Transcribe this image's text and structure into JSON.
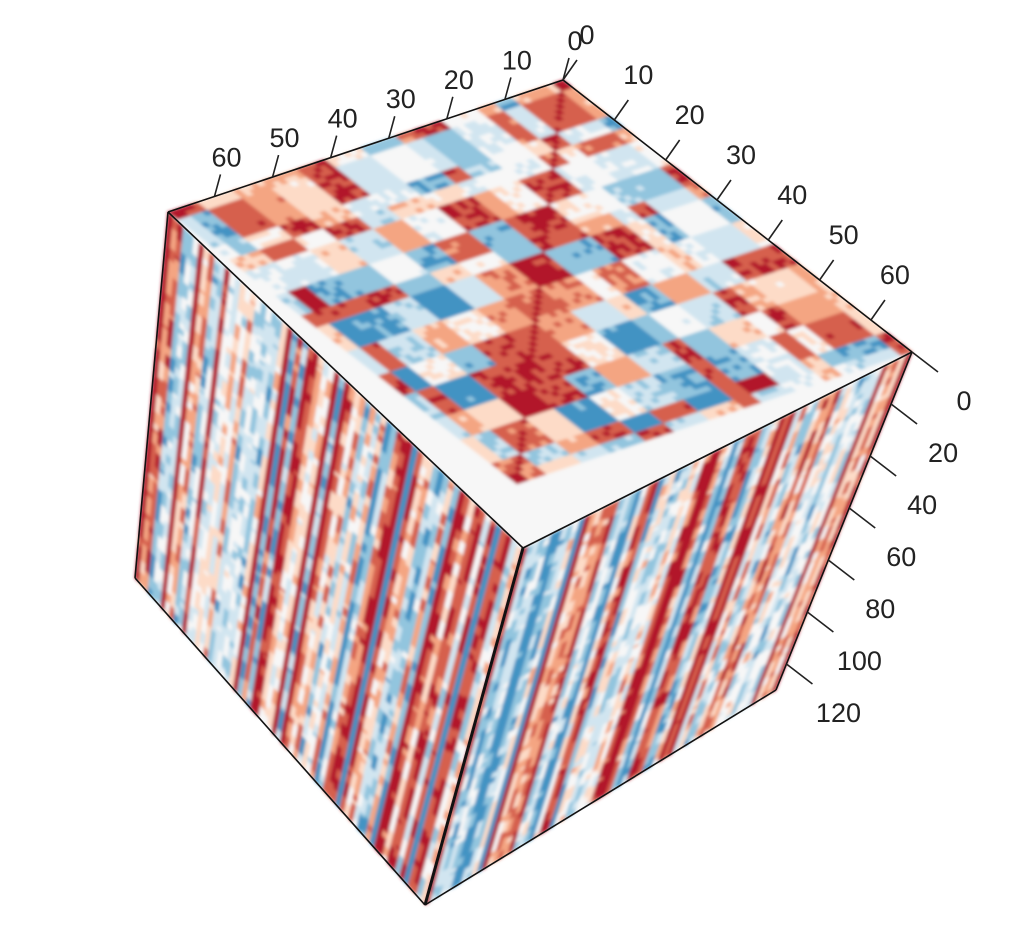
{
  "chart_data": {
    "type": "heatmap",
    "title": "",
    "description_kind": "3D cube heatmap rendering of a symmetric similarity matrix",
    "palette": [
      "#b2182b",
      "#d6604d",
      "#f4a582",
      "#fddbc7",
      "#f7f7f7",
      "#d1e5f0",
      "#92c5de",
      "#4393c3"
    ],
    "axes": {
      "top_left": {
        "ticks": [
          0,
          10,
          20,
          30,
          40,
          50,
          60
        ],
        "range": [
          0,
          68
        ]
      },
      "top_right": {
        "ticks": [
          0,
          10,
          20,
          30,
          40,
          50,
          60
        ],
        "range": [
          0,
          68
        ]
      },
      "vertical": {
        "ticks": [
          0,
          20,
          40,
          60,
          80,
          100,
          120
        ],
        "range": [
          0,
          130
        ]
      }
    },
    "grid": false,
    "legend": "none"
  }
}
